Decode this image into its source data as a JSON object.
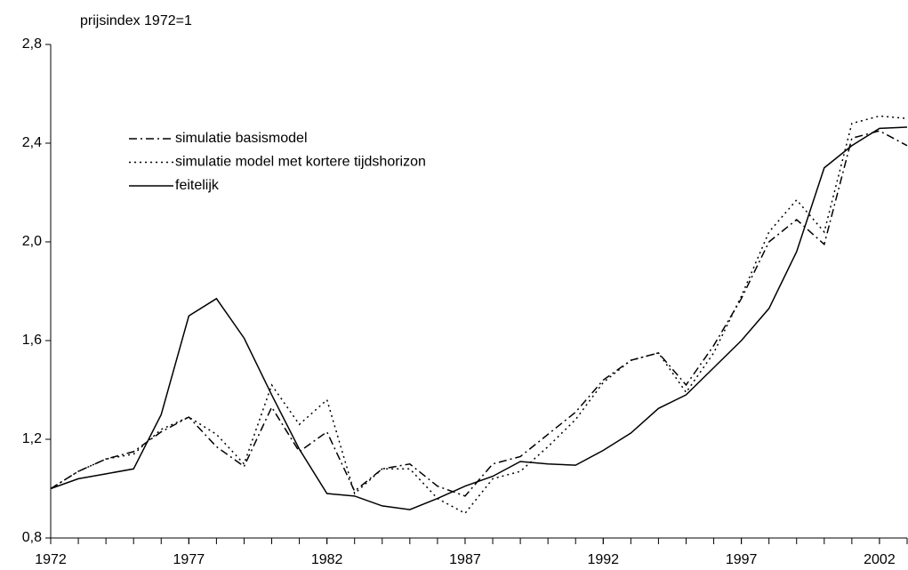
{
  "chart_data": {
    "type": "line",
    "y_label": "prijsindex 1972=1",
    "x": [
      1972,
      1973,
      1974,
      1975,
      1976,
      1977,
      1978,
      1979,
      1980,
      1981,
      1982,
      1983,
      1984,
      1985,
      1986,
      1987,
      1988,
      1989,
      1990,
      1991,
      1992,
      1993,
      1994,
      1995,
      1996,
      1997,
      1998,
      1999,
      2000,
      2001,
      2002,
      2003
    ],
    "series": [
      {
        "name": "simulatie basismodel",
        "color": "#000000",
        "dash": "dashdot",
        "values": [
          1.0,
          1.07,
          1.12,
          1.15,
          1.23,
          1.29,
          1.17,
          1.09,
          1.33,
          1.15,
          1.23,
          0.99,
          1.08,
          1.1,
          1.01,
          0.97,
          1.1,
          1.13,
          1.22,
          1.31,
          1.44,
          1.52,
          1.55,
          1.42,
          1.58,
          1.77,
          2.0,
          2.09,
          1.99,
          2.42,
          2.45,
          2.39
        ]
      },
      {
        "name": "simulatie model met kortere tijdshorizon",
        "color": "#000000",
        "dash": "dotted",
        "values": [
          1.0,
          1.07,
          1.12,
          1.14,
          1.24,
          1.29,
          1.22,
          1.1,
          1.42,
          1.26,
          1.36,
          0.98,
          1.08,
          1.08,
          0.96,
          0.9,
          1.04,
          1.07,
          1.17,
          1.28,
          1.43,
          1.52,
          1.55,
          1.39,
          1.55,
          1.78,
          2.04,
          2.17,
          2.04,
          2.48,
          2.51,
          2.5
        ]
      },
      {
        "name": "feitelijk",
        "color": "#000000",
        "dash": "solid",
        "values": [
          1.0,
          1.04,
          1.06,
          1.08,
          1.3,
          1.7,
          1.77,
          1.61,
          1.38,
          1.16,
          0.98,
          0.97,
          0.93,
          0.915,
          0.96,
          1.01,
          1.05,
          1.11,
          1.1,
          1.095,
          1.155,
          1.225,
          1.325,
          1.38,
          1.49,
          1.6,
          1.73,
          1.96,
          2.3,
          2.39,
          2.46,
          2.465
        ]
      }
    ],
    "xlim": [
      1972,
      2003
    ],
    "xticks": [
      1972,
      1977,
      1982,
      1987,
      1992,
      1997,
      2002
    ],
    "ylim": [
      0.8,
      2.8
    ],
    "yticks": [
      {
        "value": 0.8,
        "label": "0,8"
      },
      {
        "value": 1.2,
        "label": "1,2"
      },
      {
        "value": 1.6,
        "label": "1,6"
      },
      {
        "value": 2.0,
        "label": "2,0"
      },
      {
        "value": 2.4,
        "label": "2,4"
      },
      {
        "value": 2.8,
        "label": "2,8"
      }
    ],
    "grid": false
  }
}
